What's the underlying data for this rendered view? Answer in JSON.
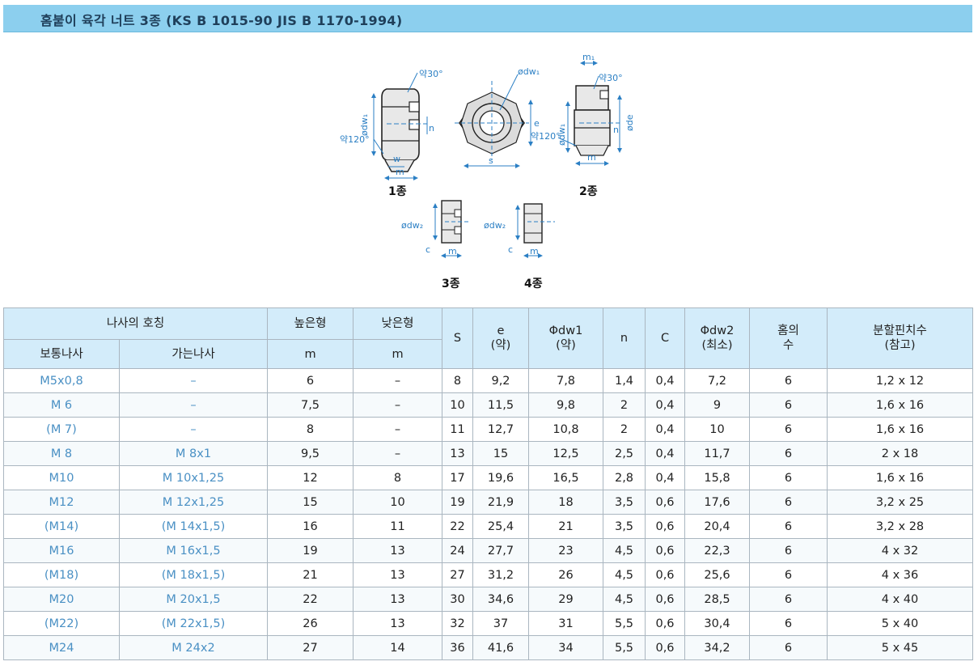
{
  "title": "홈붙이 육각 너트 3종 (KS B 1015-90 JIS B 1170-1994)",
  "figures": {
    "type1": {
      "caption": "1종",
      "annotations": {
        "angle30": "약30°",
        "angle120": "약120°",
        "dw1": "ødw₁",
        "n": "n",
        "w": "w",
        "m": "m"
      }
    },
    "front": {
      "annotations": {
        "dw1": "ødw₁",
        "e": "e",
        "s": "s"
      }
    },
    "type2": {
      "caption": "2종",
      "annotations": {
        "m1": "m₁",
        "angle30": "약30°",
        "angle120": "약120°",
        "dw1": "ødw₁",
        "n": "n",
        "de": "øde",
        "m": "m"
      }
    },
    "type3": {
      "caption": "3종",
      "annotations": {
        "dw2": "ødw₂",
        "c": "c",
        "m": "m"
      }
    },
    "type4": {
      "caption": "4종",
      "annotations": {
        "dw2": "ødw₂",
        "c": "c",
        "m": "m"
      }
    }
  },
  "colors": {
    "header_bg": "#d3ecfa",
    "title_bar": "#8ccfee",
    "thread_text": "#4a90c4",
    "dimension": "#2b7fc4"
  },
  "table": {
    "header_group": "나사의 호칭",
    "col_coarse": "보통나사",
    "col_fine": "가는나사",
    "col_high": "높은형",
    "col_high_sub": "m",
    "col_low": "낮은형",
    "col_low_sub": "m",
    "col_s": "S",
    "col_e": "e\n(약)",
    "col_dw1": "Φdw1\n(약)",
    "col_n": "n",
    "col_c": "C",
    "col_dw2": "Φdw2\n(최소)",
    "col_holes": "홈의\n수",
    "col_pin": "분할핀치수\n(참고)",
    "rows": [
      {
        "coarse": "M5x0,8",
        "fine": "–",
        "high": "6",
        "low": "–",
        "s": "8",
        "e": "9,2",
        "dw1": "7,8",
        "n": "1,4",
        "c": "0,4",
        "dw2": "7,2",
        "holes": "6",
        "pin": "1,2 x 12"
      },
      {
        "coarse": "M 6",
        "fine": "–",
        "high": "7,5",
        "low": "–",
        "s": "10",
        "e": "11,5",
        "dw1": "9,8",
        "n": "2",
        "c": "0,4",
        "dw2": "9",
        "holes": "6",
        "pin": "1,6 x 16"
      },
      {
        "coarse": "(M 7)",
        "fine": "–",
        "high": "8",
        "low": "–",
        "s": "11",
        "e": "12,7",
        "dw1": "10,8",
        "n": "2",
        "c": "0,4",
        "dw2": "10",
        "holes": "6",
        "pin": "1,6 x 16"
      },
      {
        "coarse": "M 8",
        "fine": "M 8x1",
        "high": "9,5",
        "low": "–",
        "s": "13",
        "e": "15",
        "dw1": "12,5",
        "n": "2,5",
        "c": "0,4",
        "dw2": "11,7",
        "holes": "6",
        "pin": "2 x 18"
      },
      {
        "coarse": "M10",
        "fine": "M 10x1,25",
        "high": "12",
        "low": "8",
        "s": "17",
        "e": "19,6",
        "dw1": "16,5",
        "n": "2,8",
        "c": "0,4",
        "dw2": "15,8",
        "holes": "6",
        "pin": "1,6 x 16"
      },
      {
        "coarse": "M12",
        "fine": "M 12x1,25",
        "high": "15",
        "low": "10",
        "s": "19",
        "e": "21,9",
        "dw1": "18",
        "n": "3,5",
        "c": "0,6",
        "dw2": "17,6",
        "holes": "6",
        "pin": "3,2 x 25"
      },
      {
        "coarse": "(M14)",
        "fine": "(M 14x1,5)",
        "high": "16",
        "low": "11",
        "s": "22",
        "e": "25,4",
        "dw1": "21",
        "n": "3,5",
        "c": "0,6",
        "dw2": "20,4",
        "holes": "6",
        "pin": "3,2 x 28"
      },
      {
        "coarse": "M16",
        "fine": "M 16x1,5",
        "high": "19",
        "low": "13",
        "s": "24",
        "e": "27,7",
        "dw1": "23",
        "n": "4,5",
        "c": "0,6",
        "dw2": "22,3",
        "holes": "6",
        "pin": "4 x 32"
      },
      {
        "coarse": "(M18)",
        "fine": "(M 18x1,5)",
        "high": "21",
        "low": "13",
        "s": "27",
        "e": "31,2",
        "dw1": "26",
        "n": "4,5",
        "c": "0,6",
        "dw2": "25,6",
        "holes": "6",
        "pin": "4 x 36"
      },
      {
        "coarse": "M20",
        "fine": "M 20x1,5",
        "high": "22",
        "low": "13",
        "s": "30",
        "e": "34,6",
        "dw1": "29",
        "n": "4,5",
        "c": "0,6",
        "dw2": "28,5",
        "holes": "6",
        "pin": "4 x 40"
      },
      {
        "coarse": "(M22)",
        "fine": "(M 22x1,5)",
        "high": "26",
        "low": "13",
        "s": "32",
        "e": "37",
        "dw1": "31",
        "n": "5,5",
        "c": "0,6",
        "dw2": "30,4",
        "holes": "6",
        "pin": "5 x 40"
      },
      {
        "coarse": "M24",
        "fine": "M 24x2",
        "high": "27",
        "low": "14",
        "s": "36",
        "e": "41,6",
        "dw1": "34",
        "n": "5,5",
        "c": "0,6",
        "dw2": "34,2",
        "holes": "6",
        "pin": "5 x 45"
      }
    ]
  }
}
